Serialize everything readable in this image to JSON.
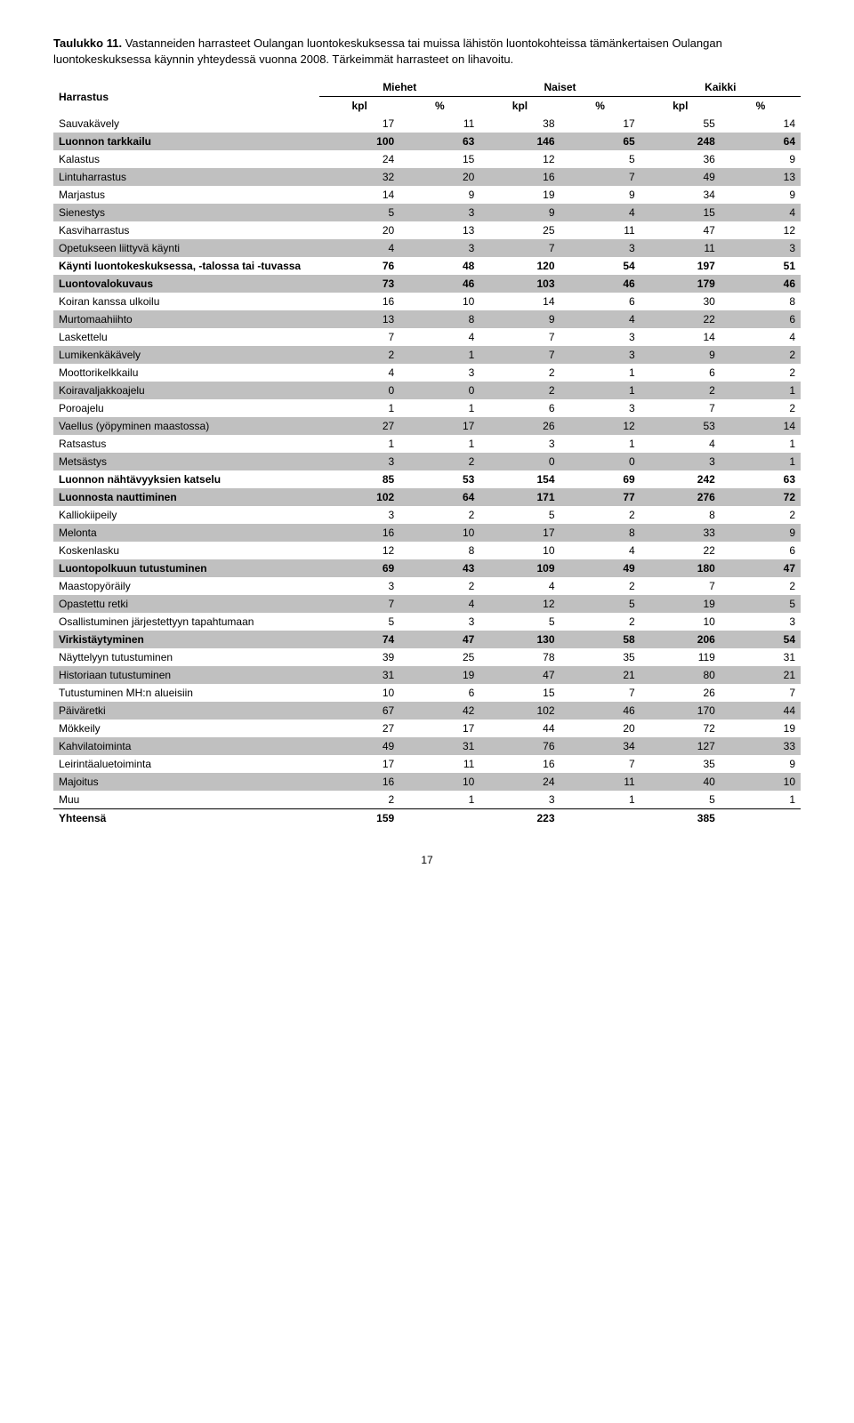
{
  "caption": {
    "lead": "Taulukko 11.",
    "text": "Vastanneiden harrasteet Oulangan luontokeskuksessa tai muissa lähistön luontokohteissa tämänkertaisen Oulangan luontokeskuksessa käynnin yhteydessä vuonna 2008. Tärkeimmät harrasteet on lihavoitu."
  },
  "header": {
    "row_label": "Harrastus",
    "groups": [
      "Miehet",
      "Naiset",
      "Kaikki"
    ],
    "sub": [
      "kpl",
      "%",
      "kpl",
      "%",
      "kpl",
      "%"
    ]
  },
  "rows": [
    {
      "label": "Sauvakävely",
      "v": [
        17,
        11,
        38,
        17,
        55,
        14
      ],
      "shade": false,
      "bold": false
    },
    {
      "label": "Luonnon tarkkailu",
      "v": [
        100,
        63,
        146,
        65,
        248,
        64
      ],
      "shade": true,
      "bold": true
    },
    {
      "label": "Kalastus",
      "v": [
        24,
        15,
        12,
        5,
        36,
        9
      ],
      "shade": false,
      "bold": false
    },
    {
      "label": "Lintuharrastus",
      "v": [
        32,
        20,
        16,
        7,
        49,
        13
      ],
      "shade": true,
      "bold": false
    },
    {
      "label": "Marjastus",
      "v": [
        14,
        9,
        19,
        9,
        34,
        9
      ],
      "shade": false,
      "bold": false
    },
    {
      "label": "Sienestys",
      "v": [
        5,
        3,
        9,
        4,
        15,
        4
      ],
      "shade": true,
      "bold": false
    },
    {
      "label": "Kasviharrastus",
      "v": [
        20,
        13,
        25,
        11,
        47,
        12
      ],
      "shade": false,
      "bold": false
    },
    {
      "label": "Opetukseen liittyvä käynti",
      "v": [
        4,
        3,
        7,
        3,
        11,
        3
      ],
      "shade": true,
      "bold": false
    },
    {
      "label": "Käynti luontokeskuksessa, -talossa tai -tuvassa",
      "v": [
        76,
        48,
        120,
        54,
        197,
        51
      ],
      "shade": false,
      "bold": true
    },
    {
      "label": "Luontovalokuvaus",
      "v": [
        73,
        46,
        103,
        46,
        179,
        46
      ],
      "shade": true,
      "bold": true
    },
    {
      "label": "Koiran kanssa ulkoilu",
      "v": [
        16,
        10,
        14,
        6,
        30,
        8
      ],
      "shade": false,
      "bold": false
    },
    {
      "label": "Murtomaahiihto",
      "v": [
        13,
        8,
        9,
        4,
        22,
        6
      ],
      "shade": true,
      "bold": false
    },
    {
      "label": "Laskettelu",
      "v": [
        7,
        4,
        7,
        3,
        14,
        4
      ],
      "shade": false,
      "bold": false
    },
    {
      "label": "Lumikenkäkävely",
      "v": [
        2,
        1,
        7,
        3,
        9,
        2
      ],
      "shade": true,
      "bold": false
    },
    {
      "label": "Moottorikelkkailu",
      "v": [
        4,
        3,
        2,
        1,
        6,
        2
      ],
      "shade": false,
      "bold": false
    },
    {
      "label": "Koiravaljakkoajelu",
      "v": [
        0,
        0,
        2,
        1,
        2,
        1
      ],
      "shade": true,
      "bold": false
    },
    {
      "label": "Poroajelu",
      "v": [
        1,
        1,
        6,
        3,
        7,
        2
      ],
      "shade": false,
      "bold": false
    },
    {
      "label": "Vaellus (yöpyminen maastossa)",
      "v": [
        27,
        17,
        26,
        12,
        53,
        14
      ],
      "shade": true,
      "bold": false
    },
    {
      "label": "Ratsastus",
      "v": [
        1,
        1,
        3,
        1,
        4,
        1
      ],
      "shade": false,
      "bold": false
    },
    {
      "label": "Metsästys",
      "v": [
        3,
        2,
        0,
        0,
        3,
        1
      ],
      "shade": true,
      "bold": false
    },
    {
      "label": "Luonnon nähtävyyksien katselu",
      "v": [
        85,
        53,
        154,
        69,
        242,
        63
      ],
      "shade": false,
      "bold": true
    },
    {
      "label": "Luonnosta nauttiminen",
      "v": [
        102,
        64,
        171,
        77,
        276,
        72
      ],
      "shade": true,
      "bold": true
    },
    {
      "label": "Kalliokiipeily",
      "v": [
        3,
        2,
        5,
        2,
        8,
        2
      ],
      "shade": false,
      "bold": false
    },
    {
      "label": "Melonta",
      "v": [
        16,
        10,
        17,
        8,
        33,
        9
      ],
      "shade": true,
      "bold": false
    },
    {
      "label": "Koskenlasku",
      "v": [
        12,
        8,
        10,
        4,
        22,
        6
      ],
      "shade": false,
      "bold": false
    },
    {
      "label": "Luontopolkuun tutustuminen",
      "v": [
        69,
        43,
        109,
        49,
        180,
        47
      ],
      "shade": true,
      "bold": true
    },
    {
      "label": "Maastopyöräily",
      "v": [
        3,
        2,
        4,
        2,
        7,
        2
      ],
      "shade": false,
      "bold": false
    },
    {
      "label": "Opastettu retki",
      "v": [
        7,
        4,
        12,
        5,
        19,
        5
      ],
      "shade": true,
      "bold": false
    },
    {
      "label": "Osallistuminen järjestettyyn tapahtumaan",
      "v": [
        5,
        3,
        5,
        2,
        10,
        3
      ],
      "shade": false,
      "bold": false
    },
    {
      "label": "Virkistäytyminen",
      "v": [
        74,
        47,
        130,
        58,
        206,
        54
      ],
      "shade": true,
      "bold": true
    },
    {
      "label": "Näyttelyyn tutustuminen",
      "v": [
        39,
        25,
        78,
        35,
        119,
        31
      ],
      "shade": false,
      "bold": false
    },
    {
      "label": "Historiaan tutustuminen",
      "v": [
        31,
        19,
        47,
        21,
        80,
        21
      ],
      "shade": true,
      "bold": false
    },
    {
      "label": "Tutustuminen MH:n alueisiin",
      "v": [
        10,
        6,
        15,
        7,
        26,
        7
      ],
      "shade": false,
      "bold": false
    },
    {
      "label": "Päiväretki",
      "v": [
        67,
        42,
        102,
        46,
        170,
        44
      ],
      "shade": true,
      "bold": false
    },
    {
      "label": "Mökkeily",
      "v": [
        27,
        17,
        44,
        20,
        72,
        19
      ],
      "shade": false,
      "bold": false
    },
    {
      "label": "Kahvilatoiminta",
      "v": [
        49,
        31,
        76,
        34,
        127,
        33
      ],
      "shade": true,
      "bold": false
    },
    {
      "label": "Leirintäaluetoiminta",
      "v": [
        17,
        11,
        16,
        7,
        35,
        9
      ],
      "shade": false,
      "bold": false
    },
    {
      "label": "Majoitus",
      "v": [
        16,
        10,
        24,
        11,
        40,
        10
      ],
      "shade": true,
      "bold": false
    },
    {
      "label": "Muu",
      "v": [
        2,
        1,
        3,
        1,
        5,
        1
      ],
      "shade": false,
      "bold": false
    }
  ],
  "totals": {
    "label": "Yhteensä",
    "v": [
      159,
      "",
      223,
      "",
      385,
      ""
    ]
  },
  "page_number": "17",
  "style": {
    "shade_bg": "#c0c0c0",
    "text_color": "#000000",
    "font_family": "Arial, Helvetica, sans-serif",
    "body_font_size": 12,
    "caption_font_size": 13
  }
}
